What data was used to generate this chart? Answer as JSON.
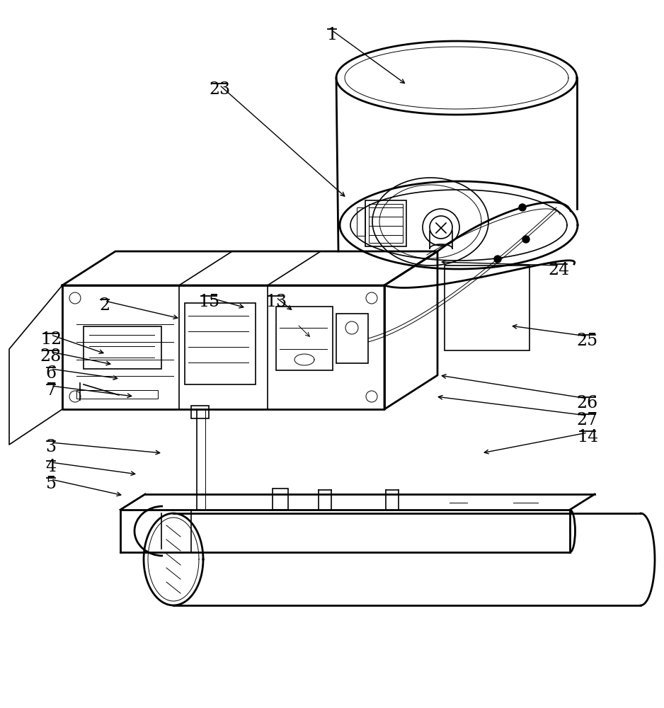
{
  "background_color": "#ffffff",
  "line_color": "#000000",
  "fig_width": 9.38,
  "fig_height": 10.0,
  "labels_info": [
    [
      1,
      469,
      38,
      575,
      120,
      "right"
    ],
    [
      23,
      310,
      115,
      490,
      280,
      "right"
    ],
    [
      24,
      790,
      370,
      620,
      370,
      "left"
    ],
    [
      25,
      830,
      470,
      720,
      460,
      "left"
    ],
    [
      2,
      148,
      420,
      255,
      450,
      "right"
    ],
    [
      15,
      295,
      415,
      348,
      435,
      "right"
    ],
    [
      13,
      390,
      415,
      415,
      440,
      "right"
    ],
    [
      12,
      72,
      468,
      150,
      500,
      "right"
    ],
    [
      28,
      72,
      492,
      160,
      515,
      "right"
    ],
    [
      6,
      72,
      516,
      170,
      535,
      "right"
    ],
    [
      7,
      72,
      540,
      190,
      560,
      "right"
    ],
    [
      3,
      72,
      620,
      230,
      640,
      "right"
    ],
    [
      4,
      72,
      648,
      195,
      670,
      "right"
    ],
    [
      5,
      72,
      672,
      175,
      700,
      "right"
    ],
    [
      26,
      830,
      558,
      620,
      530,
      "left"
    ],
    [
      27,
      830,
      582,
      615,
      560,
      "left"
    ],
    [
      14,
      830,
      606,
      680,
      640,
      "left"
    ]
  ]
}
